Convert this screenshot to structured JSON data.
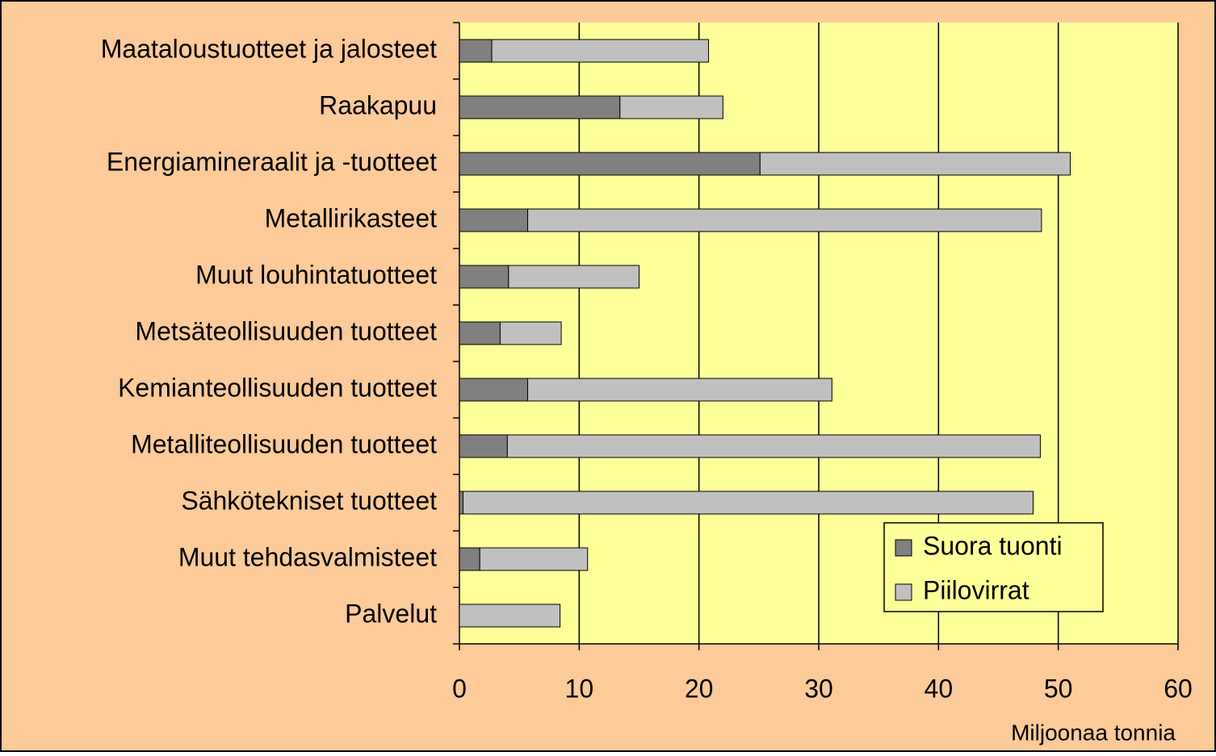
{
  "chart_data": {
    "type": "stacked_barh",
    "categories": [
      "Maataloustuotteet ja jalosteet",
      "Raakapuu",
      "Energiamineraalit ja -tuotteet",
      "Metallirikasteet",
      "Muut louhintatuotteet",
      "Metsäteollisuuden tuotteet",
      "Kemianteollisuuden tuotteet",
      "Metalliteollisuuden tuotteet",
      "Sähkötekniset tuotteet",
      "Muut tehdasvalmisteet",
      "Palvelut"
    ],
    "series": [
      {
        "name": "Suora tuonti",
        "color": "#808080",
        "values": [
          2.7,
          13.4,
          25.1,
          5.7,
          4.1,
          3.4,
          5.7,
          4.0,
          0.3,
          1.7,
          0
        ]
      },
      {
        "name": "Piilovirrat",
        "color": "#c0c0c0",
        "values": [
          18.1,
          8.6,
          25.9,
          42.9,
          10.9,
          5.1,
          25.4,
          44.5,
          47.6,
          9.0,
          8.4
        ]
      }
    ],
    "xlim": [
      0,
      60
    ],
    "xticks": [
      0,
      10,
      20,
      30,
      40,
      50,
      60
    ],
    "xlabel": "Miljoonaa tonnia",
    "grid": true,
    "legend": "lower right"
  }
}
